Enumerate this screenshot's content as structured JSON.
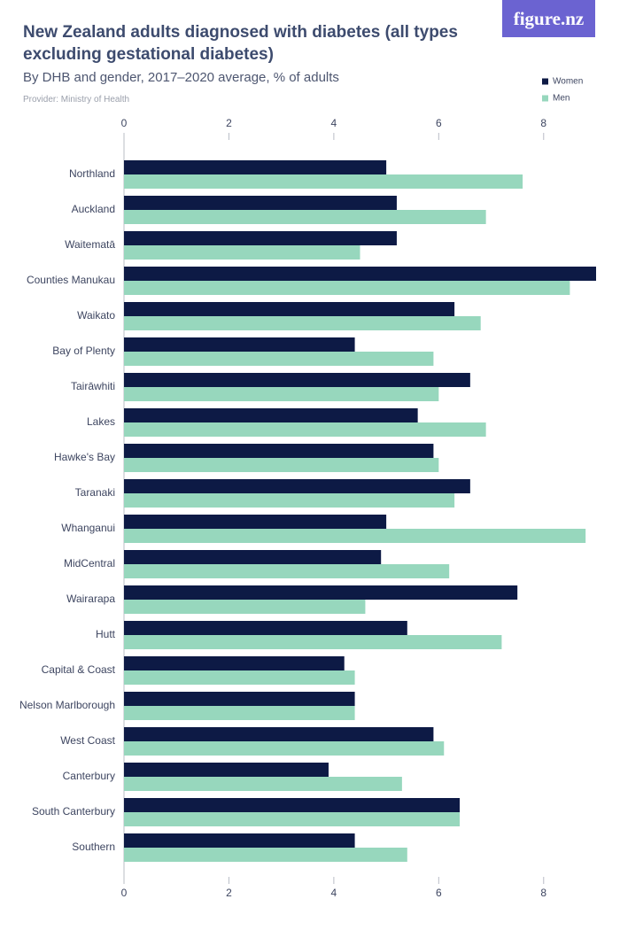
{
  "logo": "figure.nz",
  "chart_data": {
    "type": "hbar",
    "title": "New Zealand adults diagnosed with diabetes (all types excluding gestational diabetes)",
    "subtitle": "By DHB and gender, 2017–2020 average, % of adults",
    "provider": "Provider: Ministry of Health",
    "categories": [
      "Northland",
      "Auckland",
      "Waitematā",
      "Counties Manukau",
      "Waikato",
      "Bay of Plenty",
      "Tairāwhiti",
      "Lakes",
      "Hawke's Bay",
      "Taranaki",
      "Whanganui",
      "MidCentral",
      "Wairarapa",
      "Hutt",
      "Capital & Coast",
      "Nelson Marlborough",
      "West Coast",
      "Canterbury",
      "South Canterbury",
      "Southern"
    ],
    "series": [
      {
        "name": "Women",
        "color": "#0d1a45",
        "values": [
          5.0,
          5.2,
          5.2,
          9.0,
          6.3,
          4.4,
          6.6,
          5.6,
          5.9,
          6.6,
          5.0,
          4.9,
          7.5,
          5.4,
          4.2,
          4.4,
          5.9,
          3.9,
          6.4,
          4.4
        ]
      },
      {
        "name": "Men",
        "color": "#97d7bd",
        "values": [
          7.6,
          6.9,
          4.5,
          8.5,
          6.8,
          5.9,
          6.0,
          6.9,
          6.0,
          6.3,
          8.8,
          6.2,
          4.6,
          7.2,
          4.4,
          4.4,
          6.1,
          5.3,
          6.4,
          5.4
        ]
      }
    ],
    "xlim": [
      0,
      9
    ],
    "xticks": [
      0,
      2,
      4,
      6,
      8
    ],
    "legend": "top-right"
  }
}
